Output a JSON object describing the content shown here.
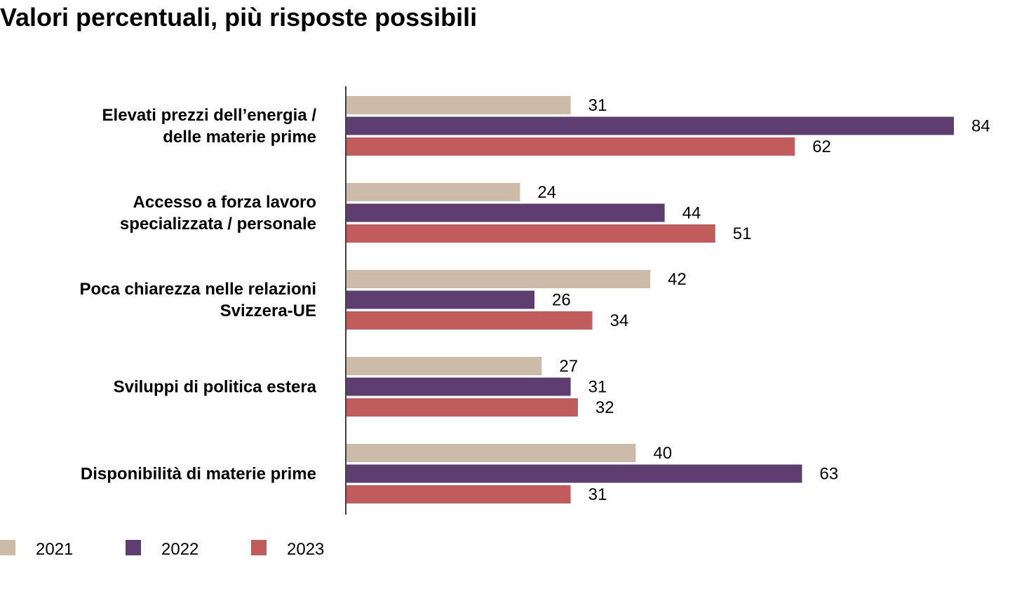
{
  "chart_data": {
    "type": "bar",
    "orientation": "horizontal",
    "title": "Valori percentuali, più risposte possibili",
    "categories": [
      [
        "Elevati prezzi dell’energia /",
        "delle materie prime"
      ],
      [
        "Accesso a forza lavoro",
        "specializzata / personale"
      ],
      [
        "Poca chiarezza nelle relazioni",
        "Svizzera-UE"
      ],
      [
        "Sviluppi di politica estera"
      ],
      [
        "Disponibilità di materie prime"
      ]
    ],
    "series": [
      {
        "name": "2021",
        "color": "#cdbba9",
        "values": [
          31,
          24,
          42,
          27,
          40
        ]
      },
      {
        "name": "2022",
        "color": "#5e3e70",
        "values": [
          84,
          44,
          26,
          31,
          63
        ]
      },
      {
        "name": "2023",
        "color": "#c05c5b",
        "values": [
          62,
          51,
          34,
          32,
          31
        ]
      }
    ],
    "xlim": [
      0,
      100
    ],
    "grid": false,
    "legend_position": "bottom-left",
    "data_labels": true
  }
}
